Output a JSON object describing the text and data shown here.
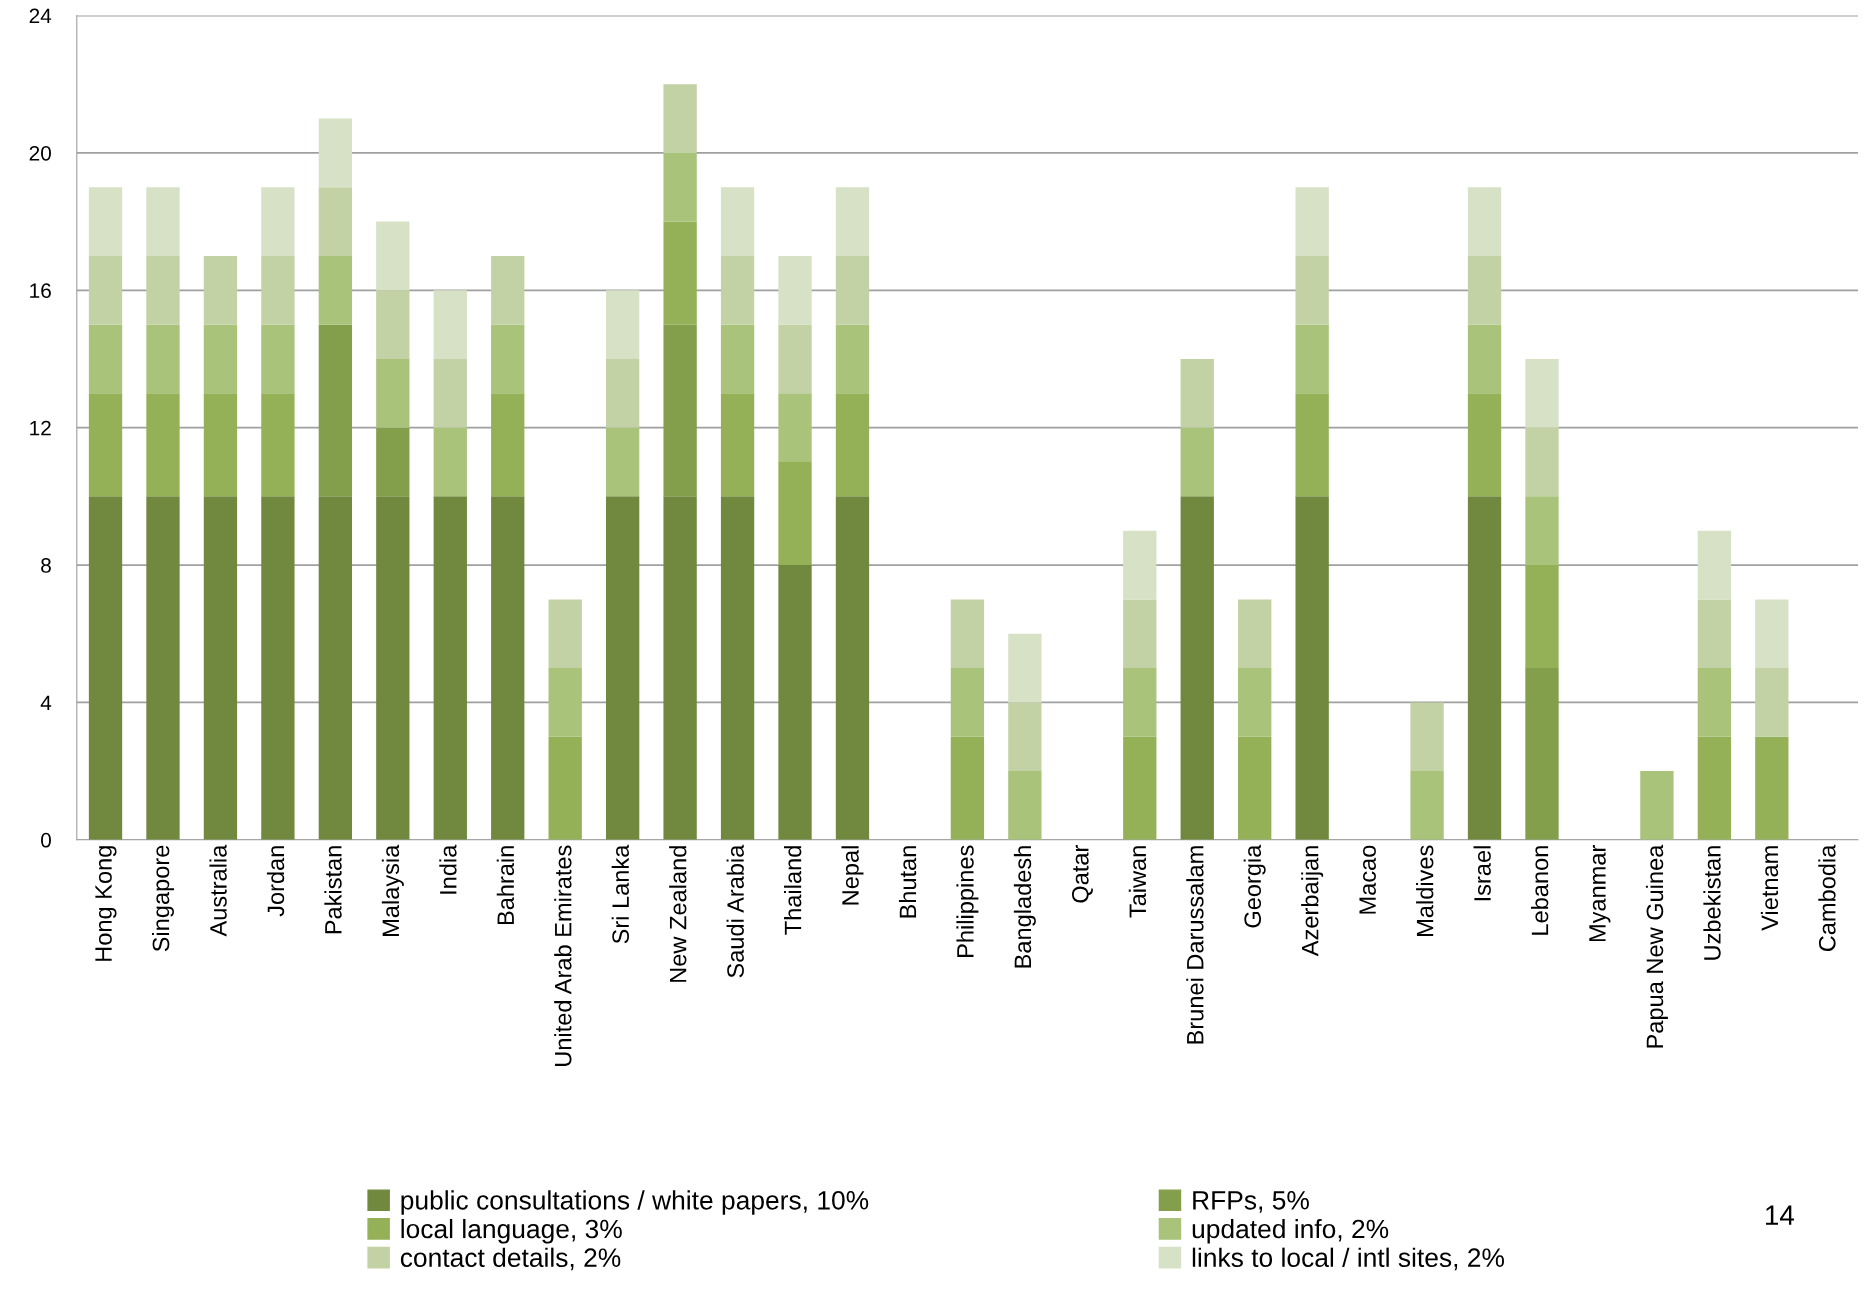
{
  "chart_data": {
    "type": "bar",
    "stacked": true,
    "grid": "y",
    "legend": "bottom",
    "categories": [
      "Hong Kong",
      "Singapore",
      "Australia",
      "Jordan",
      "Pakistan",
      "Malaysia",
      "India",
      "Bahrain",
      "United Arab Emirates",
      "Sri Lanka",
      "New Zealand",
      "Saudi Arabia",
      "Thailand",
      "Nepal",
      "Bhutan",
      "Philippines",
      "Bangladesh",
      "Qatar",
      "Taiwan",
      "Brunei Darussalam",
      "Georgia",
      "Azerbaijan",
      "Macao",
      "Maldives",
      "Israel",
      "Lebanon",
      "Myanmar",
      "Papua New Guinea",
      "Uzbekistan",
      "Vietnam",
      "Cambodia"
    ],
    "ylim": [
      0,
      24
    ],
    "yticks": [
      0,
      4,
      8,
      12,
      16,
      20,
      24
    ],
    "series": [
      {
        "name": "public consultations / white papers, 10%",
        "color": "#71893f",
        "values": [
          10,
          10,
          10,
          10,
          10,
          10,
          10,
          10,
          null,
          10,
          10,
          10,
          8,
          10,
          null,
          null,
          null,
          null,
          null,
          10,
          null,
          10,
          null,
          null,
          10,
          null,
          null,
          null,
          null,
          null,
          null
        ]
      },
      {
        "name": "RFPs, 5%",
        "color": "#839f4b",
        "values": [
          null,
          null,
          null,
          null,
          5,
          2,
          null,
          null,
          null,
          null,
          5,
          null,
          null,
          null,
          null,
          null,
          null,
          null,
          null,
          null,
          null,
          null,
          null,
          null,
          null,
          5,
          null,
          null,
          null,
          null,
          null
        ]
      },
      {
        "name": "local language, 3%",
        "color": "#95b158",
        "values": [
          3,
          3,
          3,
          3,
          null,
          null,
          null,
          3,
          3,
          null,
          3,
          3,
          3,
          3,
          null,
          3,
          null,
          null,
          3,
          null,
          3,
          3,
          null,
          null,
          3,
          3,
          null,
          null,
          3,
          3,
          null
        ]
      },
      {
        "name": "updated info, 2%",
        "color": "#a9c37b",
        "values": [
          2,
          2,
          2,
          2,
          2,
          2,
          2,
          2,
          2,
          2,
          2,
          2,
          2,
          2,
          null,
          2,
          2,
          null,
          2,
          2,
          2,
          2,
          null,
          2,
          2,
          2,
          null,
          2,
          2,
          null,
          null
        ]
      },
      {
        "name": "contact details, 2%",
        "color": "#c2d2a5",
        "values": [
          2,
          2,
          2,
          2,
          2,
          2,
          2,
          2,
          2,
          2,
          2,
          2,
          2,
          2,
          null,
          2,
          2,
          null,
          2,
          2,
          2,
          2,
          null,
          2,
          2,
          2,
          null,
          null,
          2,
          2,
          null
        ]
      },
      {
        "name": "links to local / intl sites, 2%",
        "color": "#d7e1c6",
        "values": [
          2,
          2,
          null,
          2,
          2,
          2,
          2,
          null,
          null,
          2,
          null,
          2,
          2,
          2,
          null,
          null,
          2,
          null,
          2,
          null,
          null,
          2,
          null,
          null,
          2,
          2,
          null,
          null,
          2,
          2,
          null
        ]
      }
    ],
    "annotations": [
      "14"
    ]
  }
}
